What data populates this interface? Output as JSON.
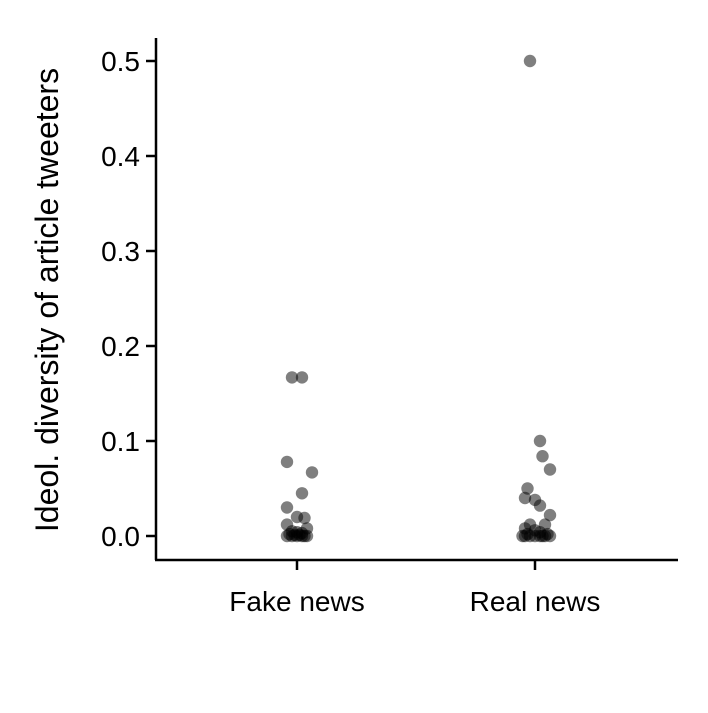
{
  "chart_data": {
    "type": "scatter",
    "title": "",
    "xlabel": "",
    "ylabel": "Ideol. diversity of article tweeters",
    "categories": [
      "Fake news",
      "Real news"
    ],
    "y_ticks": [
      "0.0",
      "0.1",
      "0.2",
      "0.3",
      "0.4",
      "0.5"
    ],
    "ylim": [
      -0.025,
      0.525
    ],
    "grid": false,
    "legend": "none",
    "point_color": "#000000",
    "point_opacity": 0.5,
    "series": [
      {
        "category": "Fake news",
        "points": [
          {
            "offset": -0.01,
            "y": 0.167
          },
          {
            "offset": 0.01,
            "y": 0.167
          },
          {
            "offset": -0.02,
            "y": 0.078
          },
          {
            "offset": 0.03,
            "y": 0.067
          },
          {
            "offset": 0.01,
            "y": 0.045
          },
          {
            "offset": -0.02,
            "y": 0.03
          },
          {
            "offset": 0.0,
            "y": 0.02
          },
          {
            "offset": 0.015,
            "y": 0.019
          },
          {
            "offset": -0.02,
            "y": 0.012
          },
          {
            "offset": 0.02,
            "y": 0.008
          },
          {
            "offset": -0.01,
            "y": 0.005
          },
          {
            "offset": 0.0,
            "y": 0.004
          },
          {
            "offset": 0.01,
            "y": 0.003
          },
          {
            "offset": -0.015,
            "y": 0.002
          },
          {
            "offset": -0.005,
            "y": 0.001
          },
          {
            "offset": 0.005,
            "y": 0.001
          },
          {
            "offset": 0.015,
            "y": 0.0
          },
          {
            "offset": -0.02,
            "y": 0.0
          },
          {
            "offset": 0.0,
            "y": 0.0
          },
          {
            "offset": 0.01,
            "y": 0.0
          },
          {
            "offset": -0.01,
            "y": 0.0
          },
          {
            "offset": 0.02,
            "y": 0.0
          }
        ]
      },
      {
        "category": "Real news",
        "points": [
          {
            "offset": -0.01,
            "y": 0.5
          },
          {
            "offset": 0.01,
            "y": 0.1
          },
          {
            "offset": 0.015,
            "y": 0.084
          },
          {
            "offset": 0.03,
            "y": 0.07
          },
          {
            "offset": -0.015,
            "y": 0.05
          },
          {
            "offset": -0.02,
            "y": 0.04
          },
          {
            "offset": 0.0,
            "y": 0.038
          },
          {
            "offset": 0.01,
            "y": 0.032
          },
          {
            "offset": 0.03,
            "y": 0.022
          },
          {
            "offset": -0.01,
            "y": 0.012
          },
          {
            "offset": 0.02,
            "y": 0.012
          },
          {
            "offset": -0.02,
            "y": 0.008
          },
          {
            "offset": 0.0,
            "y": 0.006
          },
          {
            "offset": 0.01,
            "y": 0.004
          },
          {
            "offset": -0.015,
            "y": 0.002
          },
          {
            "offset": 0.025,
            "y": 0.002
          },
          {
            "offset": -0.025,
            "y": 0.0
          },
          {
            "offset": -0.01,
            "y": 0.0
          },
          {
            "offset": 0.0,
            "y": 0.0
          },
          {
            "offset": 0.01,
            "y": 0.0
          },
          {
            "offset": 0.02,
            "y": 0.0
          },
          {
            "offset": 0.03,
            "y": 0.0
          },
          {
            "offset": -0.02,
            "y": 0.0
          },
          {
            "offset": 0.015,
            "y": 0.0
          }
        ]
      }
    ]
  }
}
